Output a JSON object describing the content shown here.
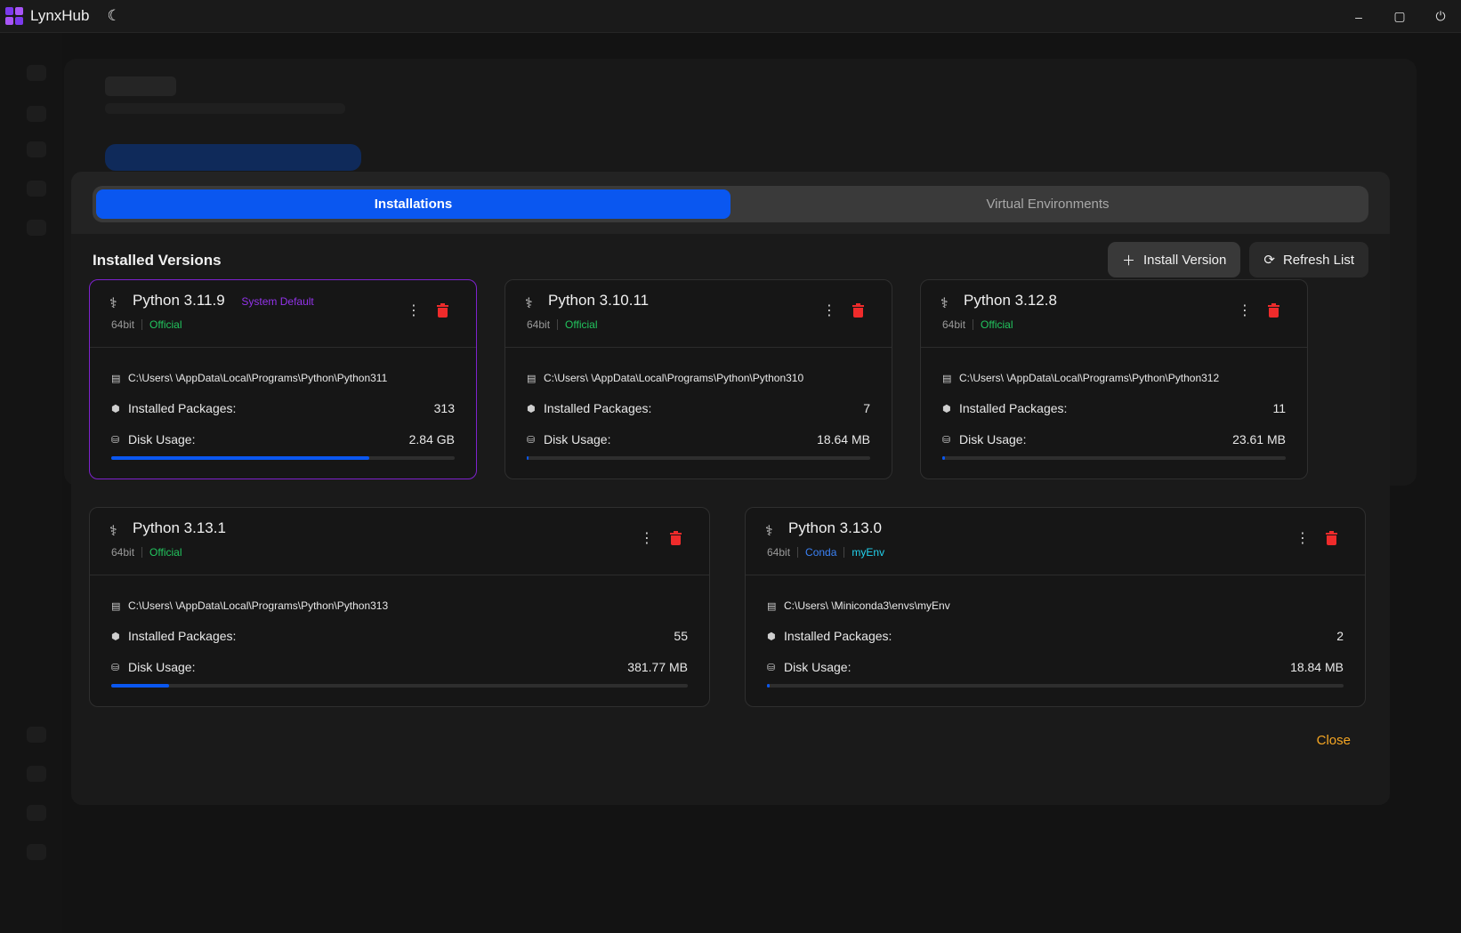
{
  "app": {
    "title": "LynxHub"
  },
  "window_controls": {
    "minimize": "–",
    "maximize": "▢",
    "power": "⏻"
  },
  "tabs": [
    {
      "label": "Installations",
      "active": true
    },
    {
      "label": "Virtual Environments",
      "active": false
    }
  ],
  "section": {
    "title": "Installed Versions"
  },
  "actions": {
    "install_label": "Install Version",
    "refresh_label": "Refresh List"
  },
  "labels": {
    "installed_packages": "Installed Packages:",
    "disk_usage": "Disk Usage:"
  },
  "cards": [
    {
      "version": "Python 3.11.9",
      "badge": "System Default",
      "arch": "64bit",
      "source": "Official",
      "path": "C:\\Users\\        \\AppData\\Local\\Programs\\Python\\Python311",
      "packages": "313",
      "disk": "2.84 GB",
      "usage_fraction": 0.75
    },
    {
      "version": "Python 3.10.11",
      "arch": "64bit",
      "source": "Official",
      "path": "C:\\Users\\        \\AppData\\Local\\Programs\\Python\\Python310",
      "packages": "7",
      "disk": "18.64 MB",
      "usage_fraction": 0.005
    },
    {
      "version": "Python 3.12.8",
      "arch": "64bit",
      "source": "Official",
      "path": "C:\\Users\\        \\AppData\\Local\\Programs\\Python\\Python312",
      "packages": "11",
      "disk": "23.61 MB",
      "usage_fraction": 0.008
    },
    {
      "version": "Python 3.13.1",
      "arch": "64bit",
      "source": "Official",
      "path": "C:\\Users\\        \\AppData\\Local\\Programs\\Python\\Python313",
      "packages": "55",
      "disk": "381.77 MB",
      "usage_fraction": 0.1
    },
    {
      "version": "Python 3.13.0",
      "arch": "64bit",
      "source": "Conda",
      "env": "myEnv",
      "path": "C:\\Users\\        \\Miniconda3\\envs\\myEnv",
      "packages": "2",
      "disk": "18.84 MB",
      "usage_fraction": 0.005
    }
  ],
  "footer": {
    "close_label": "Close"
  },
  "colors": {
    "accent": "#0a57f0",
    "default_border": "#7e22ce",
    "official": "#22c55e",
    "conda": "#3b82f6",
    "env": "#22d3ee",
    "delete": "#ef2b2b",
    "close": "#f5a623"
  }
}
